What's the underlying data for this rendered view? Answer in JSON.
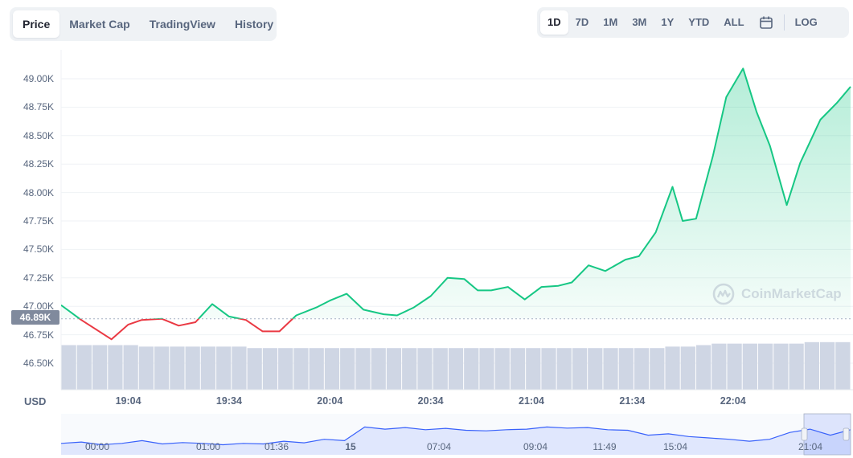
{
  "tabs": [
    {
      "label": "Price",
      "active": true
    },
    {
      "label": "Market Cap",
      "active": false
    },
    {
      "label": "TradingView",
      "active": false
    },
    {
      "label": "History",
      "active": false
    }
  ],
  "ranges": [
    {
      "label": "1D",
      "active": true
    },
    {
      "label": "7D",
      "active": false
    },
    {
      "label": "1M",
      "active": false
    },
    {
      "label": "3M",
      "active": false
    },
    {
      "label": "1Y",
      "active": false
    },
    {
      "label": "YTD",
      "active": false
    },
    {
      "label": "ALL",
      "active": false
    }
  ],
  "calendar_icon": "calendar-icon",
  "log_label": "LOG",
  "currency_label": "USD",
  "current_price_label": "46.89K",
  "watermark": {
    "text": "CoinMarketCap",
    "icon": "coinmarketcap-logo-icon"
  },
  "colors": {
    "up": "#16c784",
    "down": "#ea3943",
    "volume": "#cfd6e4",
    "navigator": "#3861fb"
  },
  "chart_data": {
    "type": "line",
    "title": "",
    "ylabel": "",
    "xlabel": "",
    "y_ticks": [
      "46.50K",
      "46.75K",
      "47.00K",
      "47.25K",
      "47.50K",
      "47.75K",
      "48.00K",
      "48.25K",
      "48.50K",
      "48.75K",
      "49.00K"
    ],
    "x_ticks": [
      "19:04",
      "19:34",
      "20:04",
      "20:34",
      "21:04",
      "21:34",
      "22:04"
    ],
    "ylim": [
      46.5,
      49.25
    ],
    "baseline": 46.89,
    "grid": true,
    "price": {
      "x_minutes": [
        0,
        6,
        15,
        20,
        24,
        30,
        35,
        40,
        45,
        50,
        55,
        60,
        65,
        70,
        76,
        80,
        85,
        90,
        96,
        100,
        105,
        110,
        115,
        120,
        124,
        128,
        133,
        138,
        143,
        148,
        152,
        157,
        162,
        168,
        172,
        177,
        182,
        185,
        189,
        194,
        198,
        203,
        207,
        211,
        216,
        220,
        226,
        231,
        235
      ],
      "y": [
        47.01,
        46.88,
        46.71,
        46.84,
        46.88,
        46.89,
        46.83,
        46.86,
        47.02,
        46.91,
        46.88,
        46.78,
        46.78,
        46.92,
        46.99,
        47.05,
        47.11,
        46.97,
        46.93,
        46.92,
        46.99,
        47.09,
        47.25,
        47.24,
        47.14,
        47.14,
        47.17,
        47.06,
        47.17,
        47.18,
        47.21,
        47.36,
        47.31,
        47.41,
        47.44,
        47.65,
        48.05,
        47.75,
        47.77,
        48.32,
        48.84,
        49.09,
        48.71,
        48.41,
        47.89,
        48.26,
        48.64,
        48.79,
        48.93
      ]
    },
    "volume_relative": [
      0.3,
      0.3,
      0.3,
      0.3,
      0.3,
      0.29,
      0.29,
      0.29,
      0.29,
      0.29,
      0.29,
      0.29,
      0.28,
      0.28,
      0.28,
      0.28,
      0.28,
      0.28,
      0.28,
      0.28,
      0.28,
      0.28,
      0.28,
      0.28,
      0.28,
      0.28,
      0.28,
      0.28,
      0.28,
      0.28,
      0.28,
      0.28,
      0.28,
      0.28,
      0.28,
      0.28,
      0.28,
      0.28,
      0.28,
      0.29,
      0.29,
      0.3,
      0.31,
      0.31,
      0.31,
      0.31,
      0.31,
      0.31,
      0.32,
      0.32,
      0.32
    ],
    "navigator": {
      "x_ticks": [
        "00:00",
        "01:00",
        "01:36",
        "15",
        "07:04",
        "09:04",
        "11:49",
        "15:04",
        "21:04"
      ],
      "y_relative": [
        0.3,
        0.35,
        0.25,
        0.3,
        0.4,
        0.28,
        0.33,
        0.3,
        0.25,
        0.3,
        0.28,
        0.38,
        0.32,
        0.45,
        0.4,
        0.9,
        0.82,
        0.88,
        0.8,
        0.85,
        0.78,
        0.76,
        0.8,
        0.82,
        0.9,
        0.86,
        0.88,
        0.8,
        0.78,
        0.6,
        0.65,
        0.55,
        0.5,
        0.45,
        0.38,
        0.45,
        0.7,
        0.82,
        0.6,
        0.8
      ]
    }
  }
}
